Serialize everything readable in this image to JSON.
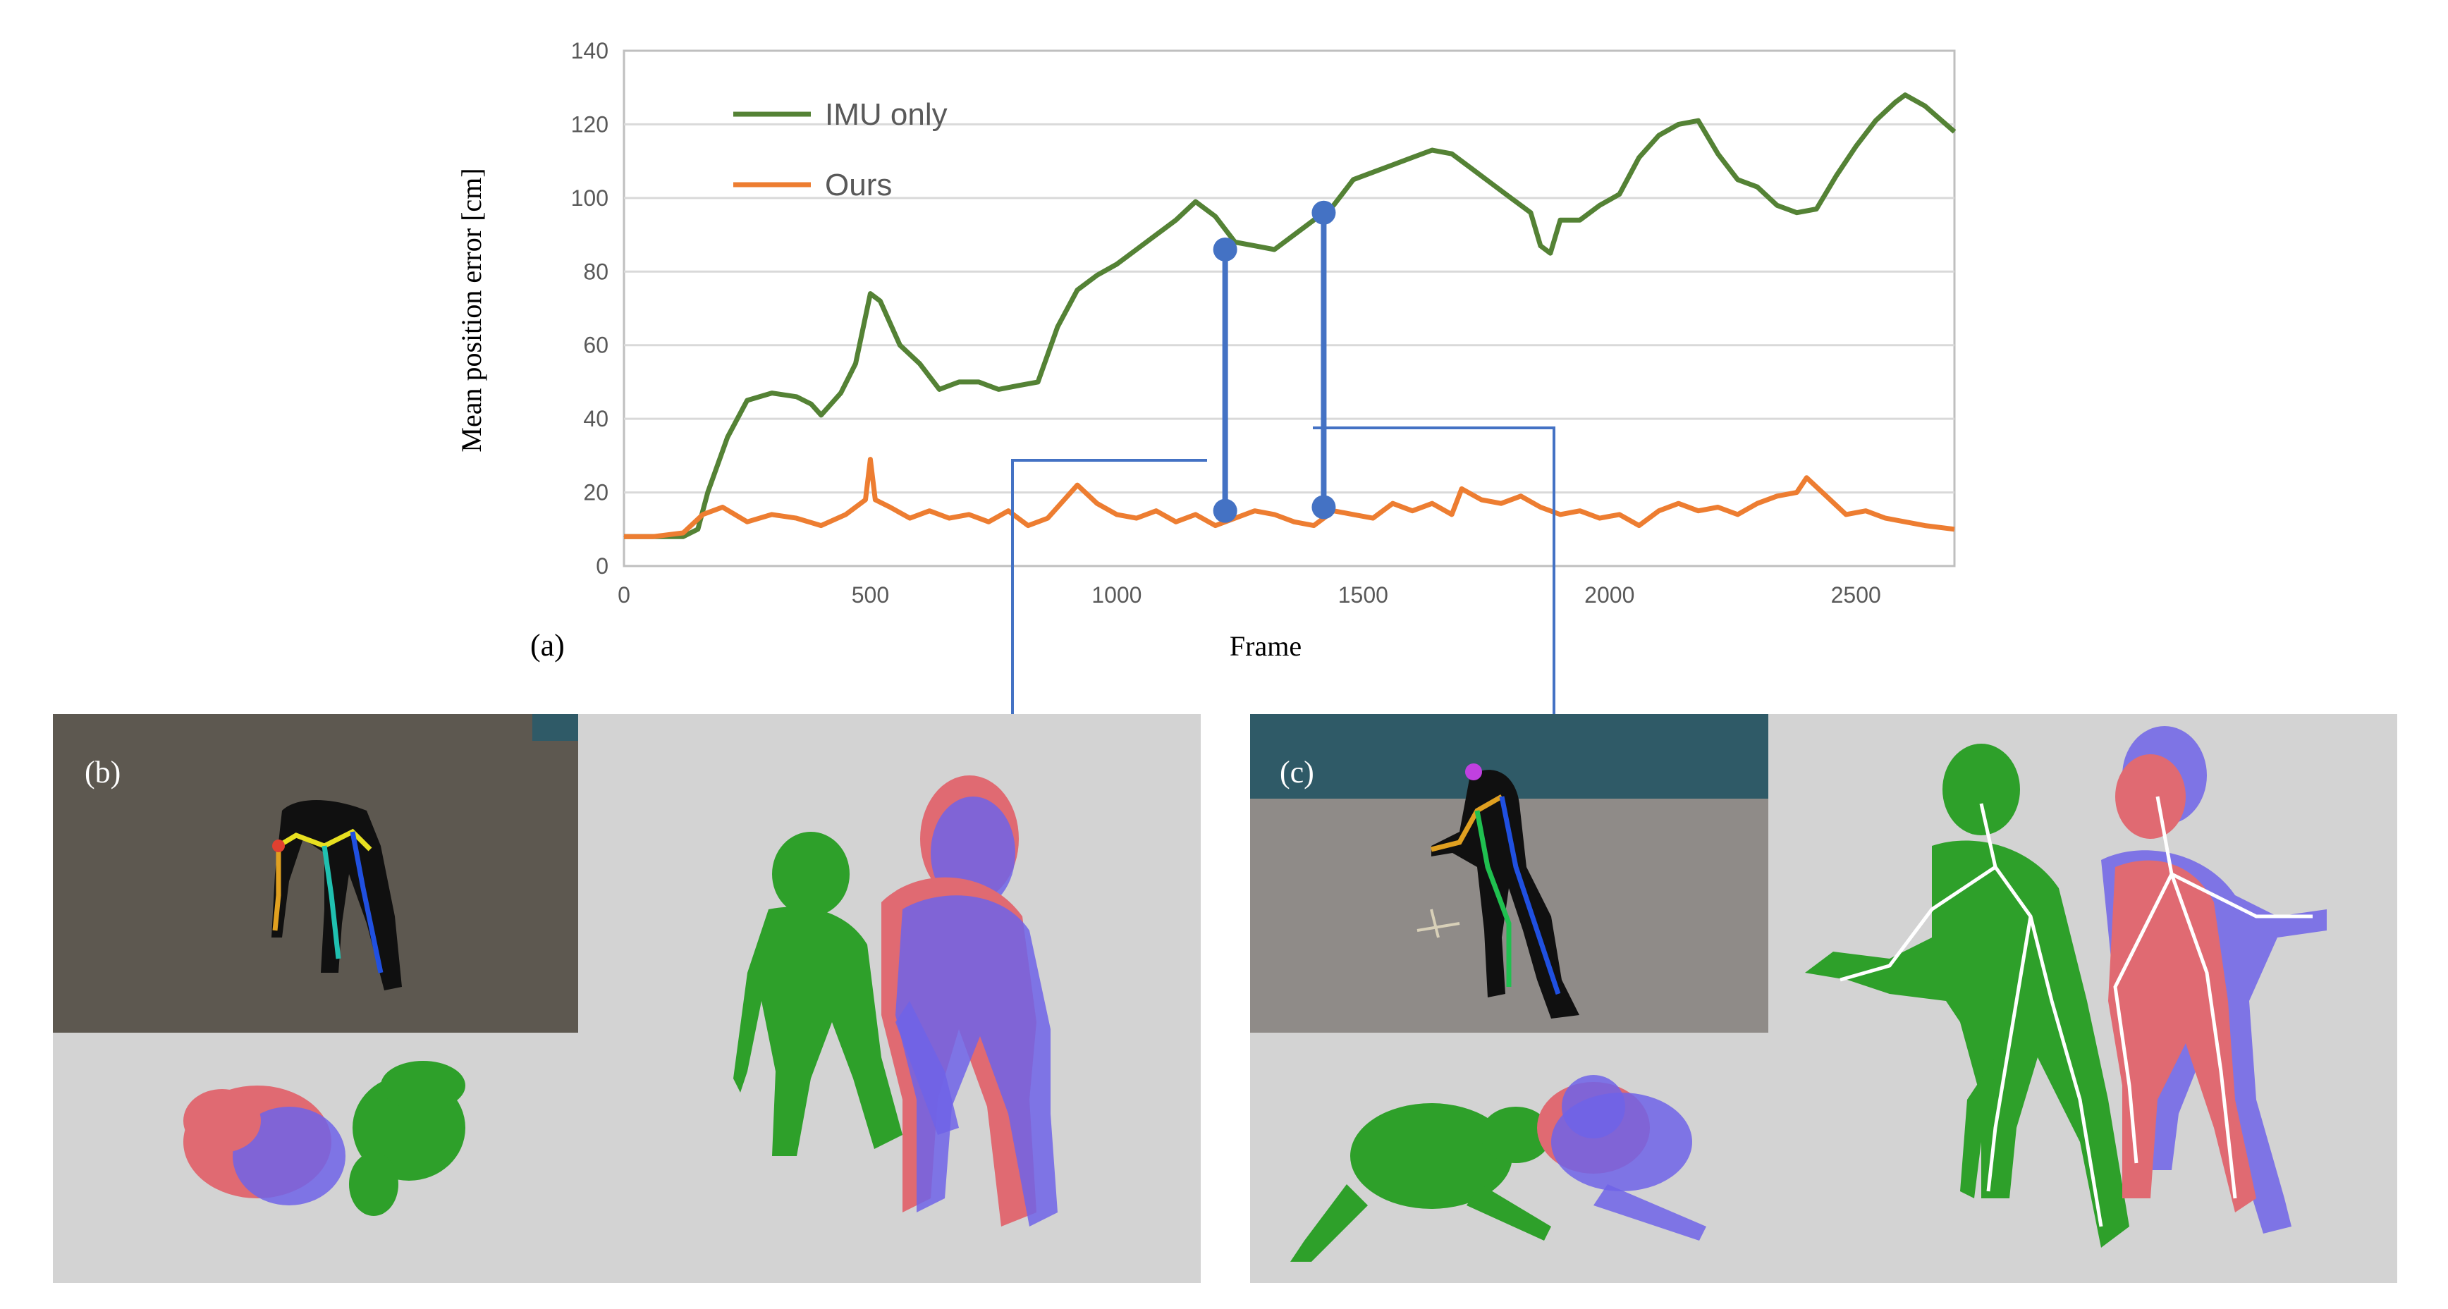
{
  "chart_data": {
    "type": "line",
    "xlabel": "Frame",
    "ylabel": "Mean position error [cm]",
    "xlim": [
      0,
      2700
    ],
    "ylim": [
      0,
      140
    ],
    "xticks": [
      "0",
      "500",
      "1000",
      "1500",
      "2000",
      "2500"
    ],
    "yticks": [
      "0",
      "20",
      "40",
      "60",
      "80",
      "100",
      "120",
      "140"
    ],
    "grid": "horizontal",
    "legend_position": "top-left",
    "series": [
      {
        "name": "IMU only",
        "color": "#548235",
        "x": [
          0,
          60,
          120,
          150,
          170,
          210,
          250,
          300,
          350,
          380,
          400,
          440,
          470,
          500,
          520,
          560,
          600,
          640,
          680,
          720,
          760,
          800,
          840,
          880,
          920,
          960,
          1000,
          1040,
          1080,
          1120,
          1160,
          1200,
          1240,
          1280,
          1320,
          1360,
          1400,
          1440,
          1480,
          1520,
          1560,
          1600,
          1640,
          1680,
          1720,
          1760,
          1800,
          1840,
          1860,
          1880,
          1900,
          1940,
          1980,
          2020,
          2060,
          2100,
          2140,
          2180,
          2220,
          2260,
          2300,
          2340,
          2380,
          2420,
          2460,
          2500,
          2540,
          2580,
          2600,
          2640,
          2700
        ],
        "y": [
          8,
          8,
          8,
          10,
          20,
          35,
          45,
          47,
          46,
          44,
          41,
          47,
          55,
          74,
          72,
          60,
          55,
          48,
          50,
          50,
          48,
          49,
          50,
          65,
          75,
          79,
          82,
          86,
          90,
          94,
          99,
          95,
          88,
          87,
          86,
          90,
          94,
          98,
          105,
          107,
          109,
          111,
          113,
          112,
          108,
          104,
          100,
          96,
          87,
          85,
          94,
          94,
          98,
          101,
          111,
          117,
          120,
          121,
          112,
          105,
          103,
          98,
          96,
          97,
          106,
          114,
          121,
          126,
          128,
          125,
          118
        ]
      },
      {
        "name": "Ours",
        "color": "#ed7d31",
        "x": [
          0,
          60,
          120,
          160,
          200,
          250,
          300,
          350,
          400,
          450,
          490,
          500,
          510,
          540,
          580,
          620,
          660,
          700,
          740,
          780,
          820,
          860,
          900,
          920,
          960,
          1000,
          1040,
          1080,
          1120,
          1160,
          1200,
          1240,
          1280,
          1320,
          1360,
          1400,
          1440,
          1480,
          1520,
          1560,
          1600,
          1640,
          1680,
          1700,
          1740,
          1780,
          1820,
          1860,
          1900,
          1940,
          1980,
          2020,
          2060,
          2100,
          2140,
          2180,
          2220,
          2260,
          2300,
          2340,
          2380,
          2400,
          2440,
          2480,
          2520,
          2560,
          2600,
          2640,
          2700
        ],
        "y": [
          8,
          8,
          9,
          14,
          16,
          12,
          14,
          13,
          11,
          14,
          18,
          29,
          18,
          16,
          13,
          15,
          13,
          14,
          12,
          15,
          11,
          13,
          19,
          22,
          17,
          14,
          13,
          15,
          12,
          14,
          11,
          13,
          15,
          14,
          12,
          11,
          15,
          14,
          13,
          17,
          15,
          17,
          14,
          21,
          18,
          17,
          19,
          16,
          14,
          15,
          13,
          14,
          11,
          15,
          17,
          15,
          16,
          14,
          17,
          19,
          20,
          24,
          19,
          14,
          15,
          13,
          12,
          11,
          10
        ]
      }
    ],
    "annotations": [
      {
        "x": 1220,
        "y_top": 86,
        "y_bottom": 15
      },
      {
        "x": 1420,
        "y_top": 96,
        "y_bottom": 16
      }
    ]
  },
  "labels": {
    "panel_a": "(a)",
    "panel_b": "(b)",
    "panel_c": "(c)"
  },
  "colors": {
    "connector": "#4472c4",
    "grid": "#d9d9d9",
    "panel_background": "#d3d3d3"
  }
}
